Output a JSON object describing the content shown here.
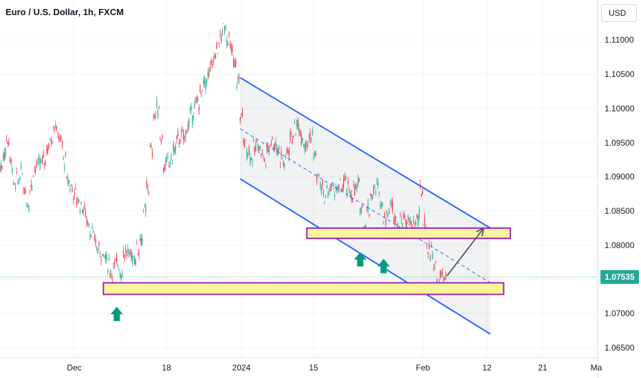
{
  "header": {
    "symbol_title": "Euro / U.S. Dollar, 1h, FXCM"
  },
  "toolbar": {
    "currency_label": "USD"
  },
  "colors": {
    "candle_up": "#22ab94",
    "candle_down": "#f23645",
    "channel": "#2962ff",
    "zone_fill": "#fdf49f",
    "zone_border": "#9c27b0",
    "arrow_up": "#089981",
    "price_line": "#22ab94",
    "projection": "#5d606b"
  },
  "chart_data": {
    "type": "candlestick",
    "title": "Euro / U.S. Dollar, 1h, FXCM",
    "y_ticks": [
      "1.11000",
      "1.10500",
      "1.10000",
      "1.09500",
      "1.09000",
      "1.08500",
      "1.08000",
      "1.07500",
      "1.07000",
      "1.06500"
    ],
    "x_ticks": [
      "Dec",
      "18",
      "2024",
      "15",
      "Feb",
      "12",
      "21",
      "Ma"
    ],
    "ylim": [
      1.064,
      1.1145
    ],
    "current_price": "1.07535",
    "price_anchors": [
      [
        0,
        1.0915
      ],
      [
        2,
        1.0955
      ],
      [
        4,
        1.0885
      ],
      [
        6,
        1.0905
      ],
      [
        8,
        1.0862
      ],
      [
        10,
        1.0912
      ],
      [
        13,
        1.0925
      ],
      [
        16,
        1.0975
      ],
      [
        18,
        1.095
      ],
      [
        20,
        1.0895
      ],
      [
        22,
        1.0875
      ],
      [
        25,
        1.085
      ],
      [
        27,
        1.082
      ],
      [
        29,
        1.0795
      ],
      [
        31,
        1.0785
      ],
      [
        33,
        1.0762
      ],
      [
        35,
        1.0775
      ],
      [
        36,
        1.076
      ],
      [
        37,
        1.079
      ],
      [
        40,
        1.0782
      ],
      [
        42,
        1.081
      ],
      [
        44,
        1.0885
      ],
      [
        46,
        1.099
      ],
      [
        47,
        1.1
      ],
      [
        49,
        1.0915
      ],
      [
        51,
        1.0925
      ],
      [
        53,
        1.0955
      ],
      [
        55,
        1.096
      ],
      [
        57,
        1.099
      ],
      [
        59,
        1.101
      ],
      [
        61,
        1.1035
      ],
      [
        63,
        1.106
      ],
      [
        65,
        1.109
      ],
      [
        67,
        1.112
      ],
      [
        69,
        1.1085
      ],
      [
        71,
        1.104
      ],
      [
        72,
        1.099
      ],
      [
        73,
        1.095
      ],
      [
        75,
        1.093
      ],
      [
        77,
        1.095
      ],
      [
        79,
        1.0925
      ],
      [
        81,
        1.0955
      ],
      [
        83,
        1.094
      ],
      [
        85,
        1.092
      ],
      [
        87,
        1.096
      ],
      [
        89,
        1.0975
      ],
      [
        91,
        1.095
      ],
      [
        93,
        1.096
      ],
      [
        95,
        1.09
      ],
      [
        97,
        1.087
      ],
      [
        99,
        1.0885
      ],
      [
        101,
        1.088
      ],
      [
        103,
        1.089
      ],
      [
        105,
        1.0875
      ],
      [
        107,
        1.0885
      ],
      [
        109,
        1.083
      ],
      [
        111,
        1.0875
      ],
      [
        113,
        1.0885
      ],
      [
        115,
        1.084
      ],
      [
        117,
        1.086
      ],
      [
        119,
        1.083
      ],
      [
        121,
        1.084
      ],
      [
        123,
        1.0828
      ],
      [
        125,
        1.0838
      ],
      [
        126,
        1.088
      ],
      [
        127,
        1.083
      ],
      [
        128,
        1.0795
      ],
      [
        129,
        1.079
      ],
      [
        130,
        1.077
      ],
      [
        131,
        1.0742
      ],
      [
        132,
        1.0755
      ],
      [
        133,
        1.0752
      ]
    ],
    "annotations": {
      "descending_channel": {
        "upper": [
          [
            72,
            1.1045
          ],
          [
            147,
            1.0825
          ]
        ],
        "lower": [
          [
            72,
            1.0897
          ],
          [
            147,
            1.067
          ]
        ],
        "midline": [
          [
            72,
            1.097
          ],
          [
            147,
            1.0745
          ]
        ]
      },
      "support_zone_upper": {
        "price_top": 1.0825,
        "price_bottom": 1.081,
        "from": 92,
        "to": 153
      },
      "support_zone_lower": {
        "price_top": 1.0745,
        "price_bottom": 1.0728,
        "from": 31,
        "to": 151
      },
      "up_arrows": [
        [
          35,
          1.071
        ],
        [
          108,
          1.079
        ],
        [
          115,
          1.078
        ]
      ],
      "projection": [
        [
          134,
          1.0755
        ],
        [
          145,
          1.0825
        ]
      ]
    }
  }
}
